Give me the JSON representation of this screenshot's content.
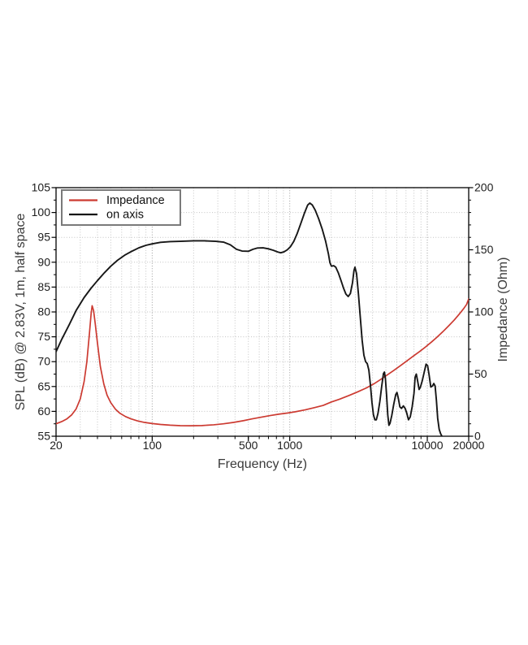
{
  "page": {
    "background": "#ffffff"
  },
  "chart_data": {
    "type": "line",
    "title": "",
    "xlabel": "Frequency (Hz)",
    "ylabel_left": "SPL (dB) @ 2.83V, 1m, half space",
    "ylabel_right": "Impedance (Ohm)",
    "x_scale": "log",
    "x_range": [
      20,
      20000
    ],
    "y_left_range": [
      55,
      105
    ],
    "y_right_range": [
      0,
      200
    ],
    "x_tick_labels": [
      20,
      100,
      500,
      1000,
      10000,
      20000
    ],
    "y_left_ticks": [
      55,
      60,
      65,
      70,
      75,
      80,
      85,
      90,
      95,
      100,
      105
    ],
    "y_right_ticks": [
      0,
      50,
      100,
      150,
      200
    ],
    "grid": "dotted; log minor verticals, 5 dB horizontals, darker decade lines",
    "legend_position": "top-left",
    "colors": {
      "frame": "#000000",
      "grid_minor": "#c3c3c3",
      "grid_decade": "#9b9b9b",
      "impedance": "#cc3a31",
      "on_axis": "#161616",
      "legend_border": "#7a7a7a"
    },
    "series": [
      {
        "name": "Impedance",
        "axis": "right",
        "unit": "Ohm",
        "color": "#cc3a31",
        "points": [
          [
            20,
            10
          ],
          [
            22,
            11.8
          ],
          [
            24,
            14
          ],
          [
            26,
            17.2
          ],
          [
            28,
            22
          ],
          [
            30,
            30
          ],
          [
            32,
            44
          ],
          [
            33.5,
            60
          ],
          [
            35,
            83
          ],
          [
            36,
            99
          ],
          [
            36.6,
            105
          ],
          [
            37.5,
            101
          ],
          [
            38.5,
            91
          ],
          [
            40,
            75
          ],
          [
            42,
            56
          ],
          [
            44.5,
            42
          ],
          [
            47,
            33
          ],
          [
            50,
            27
          ],
          [
            54,
            21.8
          ],
          [
            58,
            18.6
          ],
          [
            64,
            15.8
          ],
          [
            70,
            14
          ],
          [
            78,
            12.4
          ],
          [
            88,
            11.1
          ],
          [
            100,
            10.2
          ],
          [
            115,
            9.5
          ],
          [
            135,
            8.9
          ],
          [
            160,
            8.5
          ],
          [
            190,
            8.4
          ],
          [
            230,
            8.6
          ],
          [
            280,
            9.2
          ],
          [
            330,
            10
          ],
          [
            390,
            11.1
          ],
          [
            460,
            12.5
          ],
          [
            530,
            13.9
          ],
          [
            620,
            15.3
          ],
          [
            720,
            16.6
          ],
          [
            840,
            17.8
          ],
          [
            970,
            18.7
          ],
          [
            1100,
            19.7
          ],
          [
            1300,
            21.3
          ],
          [
            1500,
            22.9
          ],
          [
            1750,
            24.8
          ],
          [
            2000,
            27.5
          ],
          [
            2300,
            29.8
          ],
          [
            2700,
            32.8
          ],
          [
            3100,
            35.6
          ],
          [
            3600,
            38.8
          ],
          [
            4100,
            42.2
          ],
          [
            4600,
            45.8
          ],
          [
            5100,
            49.2
          ],
          [
            5700,
            52.9
          ],
          [
            6400,
            56.9
          ],
          [
            7100,
            60.6
          ],
          [
            7900,
            64.4
          ],
          [
            8800,
            68.2
          ],
          [
            9700,
            71.8
          ],
          [
            10700,
            75.7
          ],
          [
            11800,
            79.8
          ],
          [
            13000,
            84.2
          ],
          [
            14300,
            88.8
          ],
          [
            15700,
            93.5
          ],
          [
            17000,
            98
          ],
          [
            18300,
            102.4
          ],
          [
            19300,
            106
          ],
          [
            20000,
            110.5
          ]
        ]
      },
      {
        "name": "on axis",
        "axis": "left",
        "unit": "dB",
        "color": "#161616",
        "points": [
          [
            20,
            72
          ],
          [
            22,
            74.5
          ],
          [
            25,
            77.5
          ],
          [
            28,
            80.3
          ],
          [
            32,
            82.9
          ],
          [
            36,
            84.8
          ],
          [
            40,
            86.3
          ],
          [
            45,
            87.9
          ],
          [
            50,
            89.2
          ],
          [
            56,
            90.4
          ],
          [
            63,
            91.4
          ],
          [
            71,
            92.2
          ],
          [
            80,
            92.9
          ],
          [
            90,
            93.4
          ],
          [
            100,
            93.7
          ],
          [
            115,
            94
          ],
          [
            135,
            94.15
          ],
          [
            160,
            94.2
          ],
          [
            200,
            94.3
          ],
          [
            240,
            94.3
          ],
          [
            290,
            94.2
          ],
          [
            330,
            94.05
          ],
          [
            370,
            93.5
          ],
          [
            410,
            92.6
          ],
          [
            450,
            92.25
          ],
          [
            500,
            92.2
          ],
          [
            540,
            92.6
          ],
          [
            580,
            92.85
          ],
          [
            640,
            92.9
          ],
          [
            700,
            92.7
          ],
          [
            760,
            92.4
          ],
          [
            820,
            92.05
          ],
          [
            860,
            91.9
          ],
          [
            910,
            92.1
          ],
          [
            960,
            92.5
          ],
          [
            1010,
            93.1
          ],
          [
            1070,
            94.2
          ],
          [
            1130,
            95.7
          ],
          [
            1200,
            97.7
          ],
          [
            1280,
            99.9
          ],
          [
            1350,
            101.5
          ],
          [
            1400,
            101.9
          ],
          [
            1460,
            101.5
          ],
          [
            1530,
            100.5
          ],
          [
            1620,
            98.8
          ],
          [
            1720,
            96.7
          ],
          [
            1820,
            94.3
          ],
          [
            1910,
            91.7
          ],
          [
            1960,
            89.9
          ],
          [
            2010,
            89.2
          ],
          [
            2090,
            89.3
          ],
          [
            2160,
            89
          ],
          [
            2260,
            87.8
          ],
          [
            2360,
            86.3
          ],
          [
            2460,
            84.8
          ],
          [
            2560,
            83.6
          ],
          [
            2660,
            83.1
          ],
          [
            2760,
            83.7
          ],
          [
            2860,
            85.9
          ],
          [
            2930,
            88.3
          ],
          [
            2980,
            89
          ],
          [
            3060,
            87.7
          ],
          [
            3160,
            83.5
          ],
          [
            3260,
            78.8
          ],
          [
            3360,
            74.3
          ],
          [
            3460,
            71.3
          ],
          [
            3560,
            70
          ],
          [
            3660,
            69.6
          ],
          [
            3760,
            68.3
          ],
          [
            3860,
            65.3
          ],
          [
            3960,
            61.8
          ],
          [
            4060,
            59.3
          ],
          [
            4160,
            58.3
          ],
          [
            4260,
            58.3
          ],
          [
            4380,
            59.6
          ],
          [
            4520,
            62
          ],
          [
            4660,
            65
          ],
          [
            4800,
            67.6
          ],
          [
            4880,
            67.9
          ],
          [
            4960,
            66.6
          ],
          [
            5060,
            63.2
          ],
          [
            5160,
            59.3
          ],
          [
            5260,
            57.2
          ],
          [
            5360,
            57.6
          ],
          [
            5520,
            59.2
          ],
          [
            5700,
            61.4
          ],
          [
            5900,
            63.4
          ],
          [
            6020,
            63.8
          ],
          [
            6160,
            62.6
          ],
          [
            6320,
            60.9
          ],
          [
            6500,
            60.6
          ],
          [
            6700,
            61.1
          ],
          [
            6900,
            60.6
          ],
          [
            7100,
            59.6
          ],
          [
            7300,
            58.3
          ],
          [
            7520,
            58.9
          ],
          [
            7760,
            60.9
          ],
          [
            8000,
            63.6
          ],
          [
            8160,
            66.9
          ],
          [
            8320,
            67.5
          ],
          [
            8520,
            66
          ],
          [
            8720,
            64.4
          ],
          [
            8920,
            64.9
          ],
          [
            9200,
            66.2
          ],
          [
            9500,
            67.9
          ],
          [
            9800,
            69.5
          ],
          [
            10050,
            69.2
          ],
          [
            10300,
            67.4
          ],
          [
            10600,
            64.9
          ],
          [
            10900,
            65.1
          ],
          [
            11150,
            65.6
          ],
          [
            11400,
            65.1
          ],
          [
            11650,
            62.2
          ],
          [
            11900,
            58.6
          ],
          [
            12200,
            56.4
          ],
          [
            12500,
            55.5
          ],
          [
            12900,
            54.8
          ]
        ]
      }
    ]
  }
}
